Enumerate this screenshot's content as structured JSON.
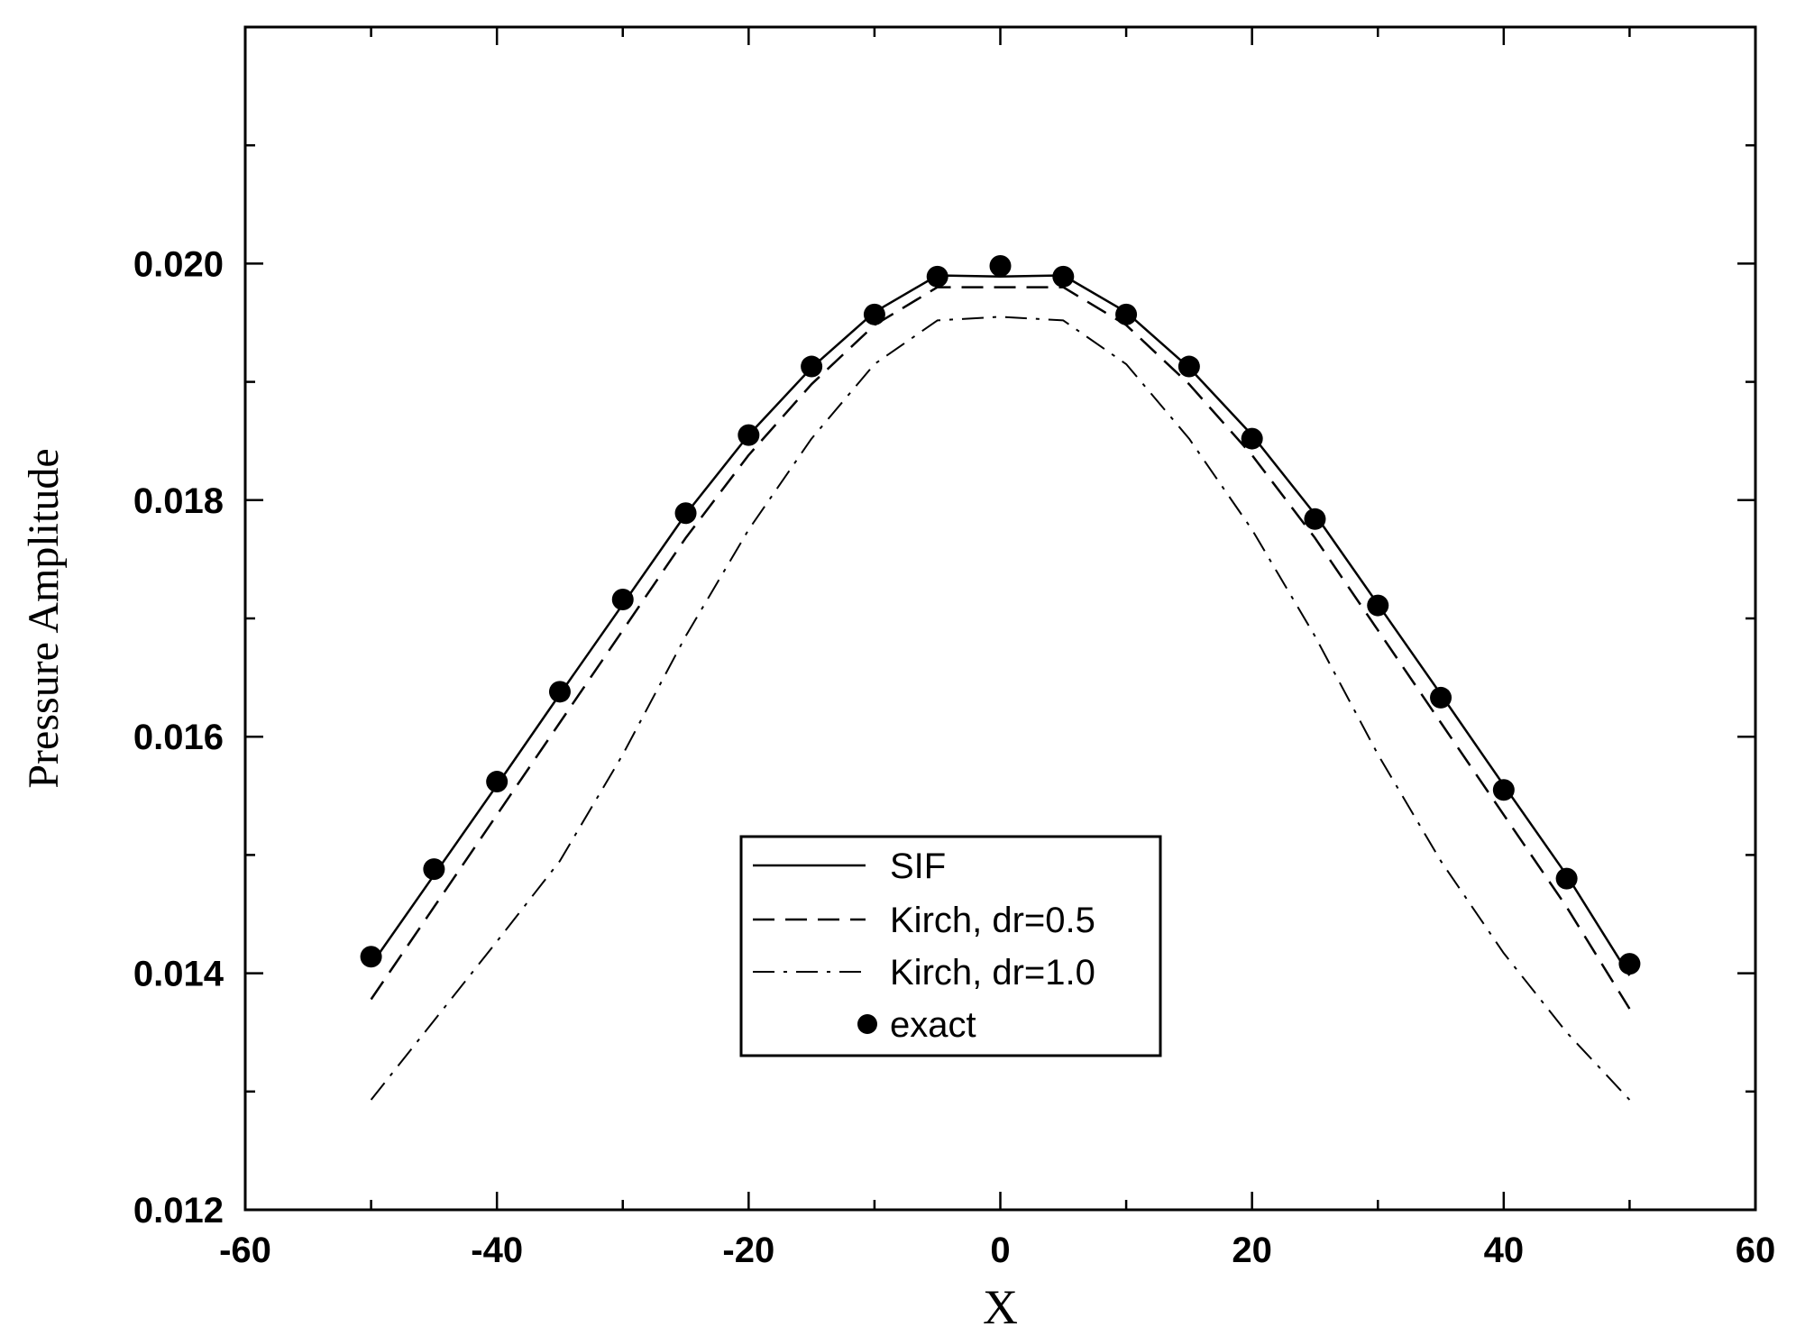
{
  "chart_data": {
    "type": "line",
    "xlabel": "X",
    "ylabel": "Pressure Amplitude",
    "xlim": [
      -60,
      60
    ],
    "ylim": [
      0.012,
      0.022
    ],
    "xticks": [
      -60,
      -40,
      -20,
      0,
      20,
      40,
      60
    ],
    "xtick_labels": [
      "-60",
      "-40",
      "-20",
      "0",
      "20",
      "40",
      "60"
    ],
    "yticks": [
      0.012,
      0.014,
      0.016,
      0.018,
      0.02
    ],
    "ytick_labels": [
      "0.012",
      "0.014",
      "0.016",
      "0.018",
      "0.020"
    ],
    "grid": false,
    "legend_position": "bottom-center",
    "series": [
      {
        "name": "SIF",
        "style": "solid",
        "x": [
          -50,
          -45,
          -40,
          -35,
          -30,
          -25,
          -20,
          -15,
          -10,
          -5,
          0,
          5,
          10,
          15,
          20,
          25,
          30,
          35,
          40,
          45,
          50
        ],
        "y": [
          0.01407,
          0.01483,
          0.01559,
          0.01636,
          0.01712,
          0.01788,
          0.01855,
          0.01912,
          0.01959,
          0.0199,
          0.01989,
          0.0199,
          0.01959,
          0.01912,
          0.01855,
          0.01788,
          0.01712,
          0.01636,
          0.01559,
          0.01483,
          0.01398
        ]
      },
      {
        "name": "Kirch, dr=0.5",
        "style": "dashed",
        "x": [
          -50,
          -45,
          -40,
          -35,
          -30,
          -25,
          -20,
          -15,
          -10,
          -5,
          0,
          5,
          10,
          15,
          20,
          25,
          30,
          35,
          40,
          45,
          50
        ],
        "y": [
          0.01378,
          0.01456,
          0.01534,
          0.01612,
          0.0169,
          0.01768,
          0.01838,
          0.01898,
          0.01948,
          0.0198,
          0.0198,
          0.0198,
          0.01948,
          0.01898,
          0.01838,
          0.01768,
          0.0169,
          0.01612,
          0.01534,
          0.01456,
          0.0137
        ]
      },
      {
        "name": "Kirch, dr=1.0",
        "style": "dashdot",
        "x": [
          -50,
          -45,
          -40,
          -35,
          -30,
          -25,
          -20,
          -15,
          -10,
          -5,
          0,
          5,
          10,
          15,
          20,
          25,
          30,
          35,
          40,
          45,
          50
        ],
        "y": [
          0.01293,
          0.0136,
          0.01427,
          0.01495,
          0.01585,
          0.01685,
          0.01775,
          0.01852,
          0.01915,
          0.01952,
          0.01955,
          0.01952,
          0.01915,
          0.01852,
          0.01775,
          0.01685,
          0.01585,
          0.01495,
          0.01417,
          0.0135,
          0.01293
        ]
      },
      {
        "name": "exact",
        "style": "markers",
        "x": [
          -50,
          -45,
          -40,
          -35,
          -30,
          -25,
          -20,
          -15,
          -10,
          -5,
          0,
          5,
          10,
          15,
          20,
          25,
          30,
          35,
          40,
          45,
          50
        ],
        "y": [
          0.01414,
          0.01488,
          0.01562,
          0.01638,
          0.01716,
          0.01789,
          0.01855,
          0.01913,
          0.01957,
          0.01989,
          0.01998,
          0.01989,
          0.01957,
          0.01913,
          0.01852,
          0.01784,
          0.01711,
          0.01633,
          0.01555,
          0.0148,
          0.01408
        ]
      }
    ]
  }
}
